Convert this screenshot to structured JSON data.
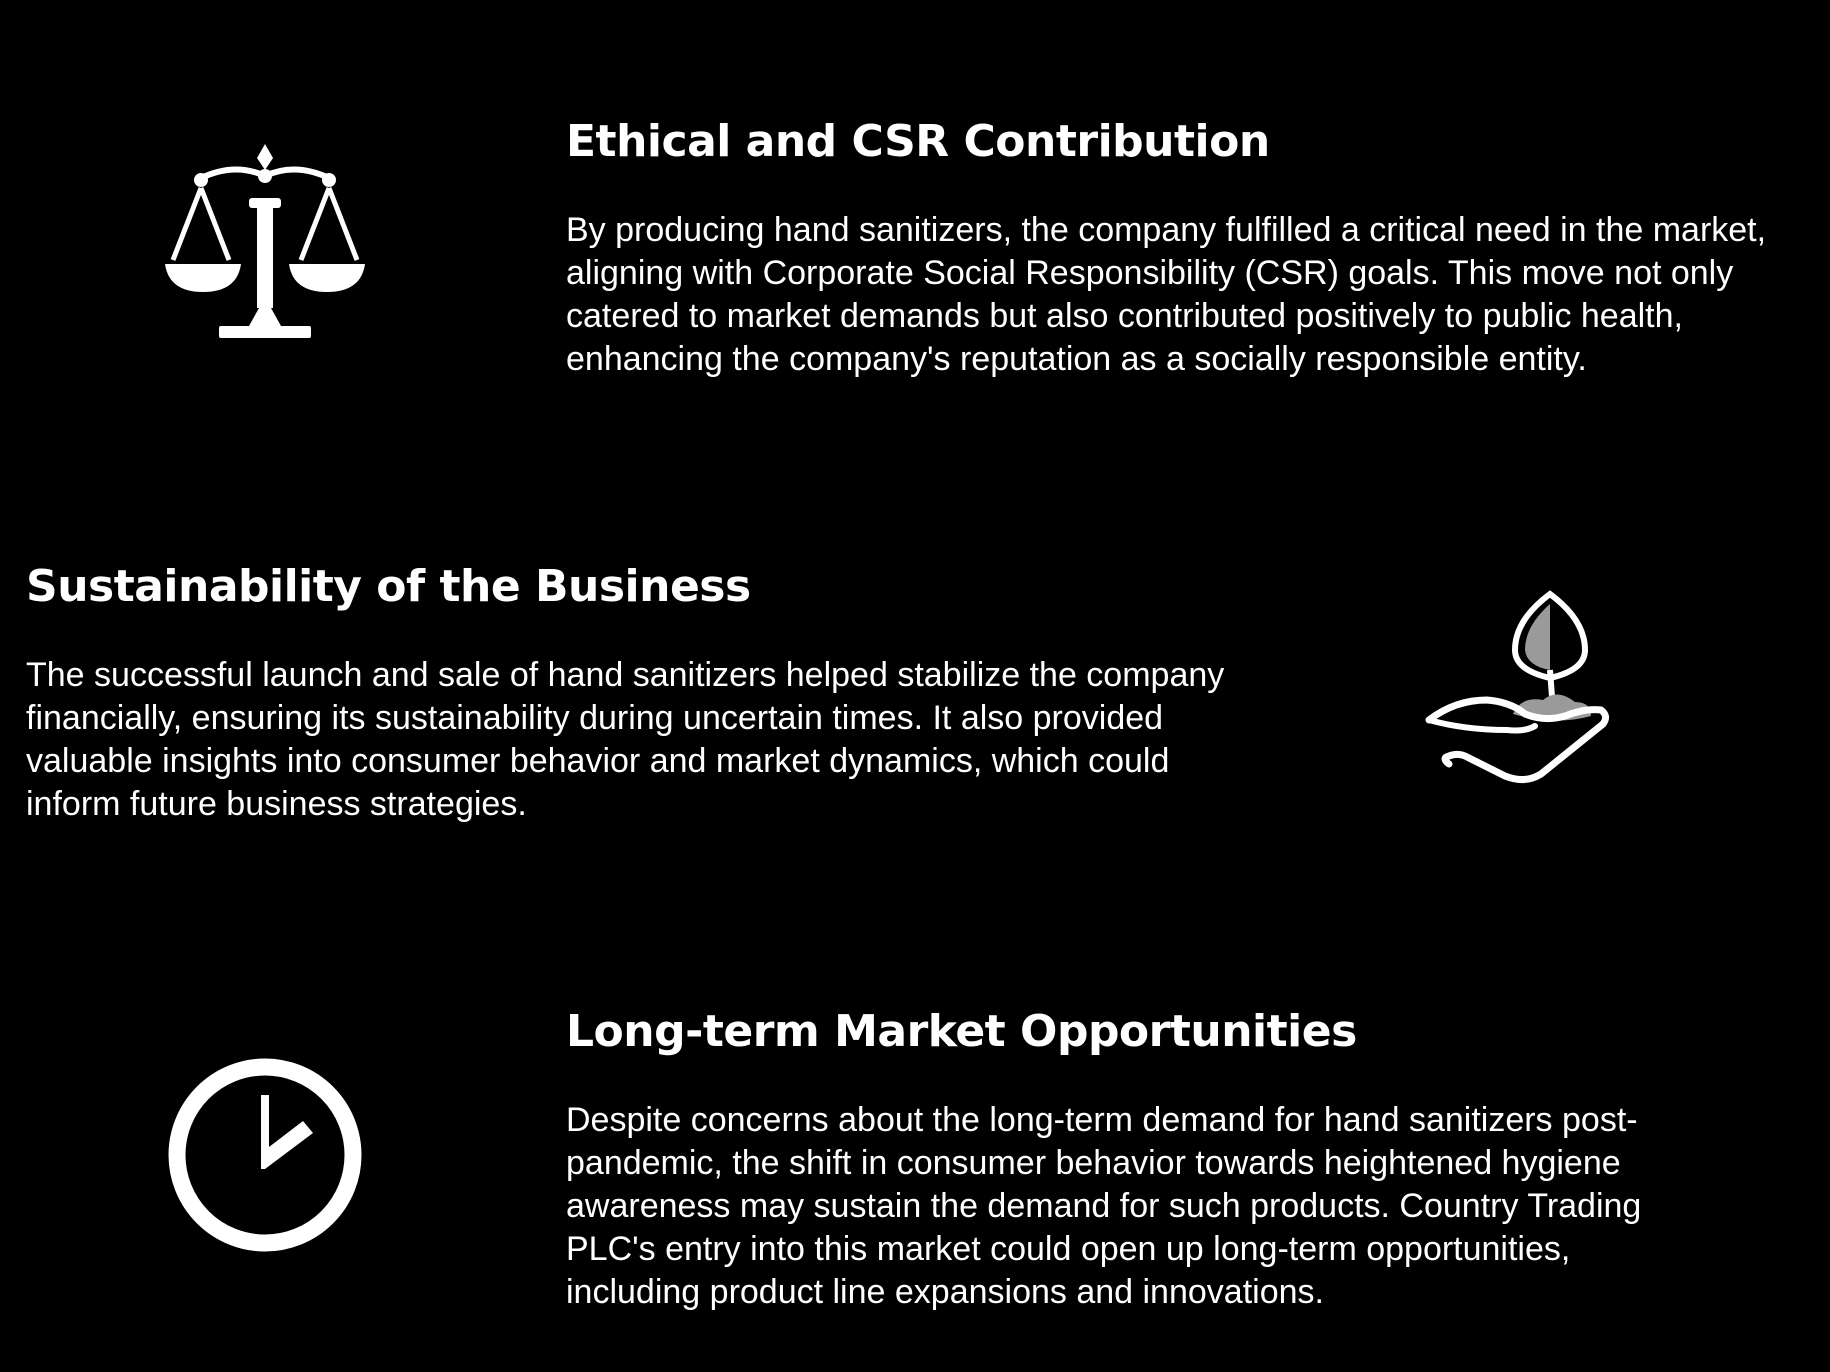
{
  "sections": [
    {
      "title": "Ethical and CSR Contribution",
      "body": "By producing hand sanitizers, the company fulfilled a critical need in the market, aligning with Corporate Social Responsibility (CSR) goals. This move not only catered to market demands but also contributed positively to public health, enhancing the company's reputation as a socially responsible entity.",
      "icon": "scales-of-justice-icon"
    },
    {
      "title": "Sustainability of the Business",
      "body": "The successful launch and sale of hand sanitizers helped stabilize the company financially, ensuring its sustainability during uncertain times. It also provided valuable insights into consumer behavior and market dynamics, which could inform future business strategies.",
      "icon": "hand-holding-plant-icon"
    },
    {
      "title": "Long-term Market Opportunities",
      "body": "Despite concerns about the long-term demand for hand sanitizers post-pandemic, the shift in consumer behavior towards heightened hygiene awareness may sustain the demand for such products. Country Trading PLC's entry into this market could open up long-term opportunities, including product line expansions and innovations.",
      "icon": "clock-icon"
    }
  ],
  "colors": {
    "background": "#000000",
    "text": "#ffffff",
    "icon_fill_gray": "#9a9a9a"
  }
}
